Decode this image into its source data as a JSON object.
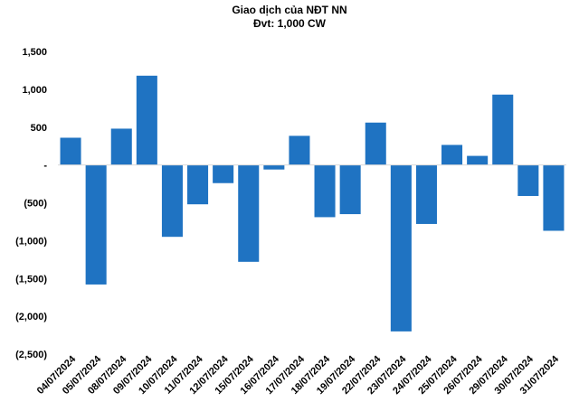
{
  "chart_data": {
    "type": "bar",
    "title": "Giao dịch của NĐT NN",
    "subtitle": "Đvt: 1,000 CW",
    "categories": [
      "04/07/2024",
      "05/07/2024",
      "08/07/2024",
      "09/07/2024",
      "10/07/2024",
      "11/07/2024",
      "12/07/2024",
      "15/07/2024",
      "16/07/2024",
      "17/07/2024",
      "18/07/2024",
      "19/07/2024",
      "22/07/2024",
      "23/07/2024",
      "24/07/2024",
      "25/07/2024",
      "26/07/2024",
      "29/07/2024",
      "30/07/2024",
      "31/07/2024"
    ],
    "values": [
      360,
      -1580,
      480,
      1180,
      -950,
      -520,
      -240,
      -1280,
      -60,
      385,
      -690,
      -650,
      560,
      -2200,
      -780,
      265,
      120,
      930,
      -410,
      -870
    ],
    "ylim": [
      -2500,
      1500
    ],
    "yticks": [
      1500,
      1000,
      500,
      0,
      -500,
      -1000,
      -1500,
      -2000,
      -2500
    ],
    "ytick_labels": [
      "1,500",
      "1,000",
      "500",
      "-",
      "(500)",
      "(1,000)",
      "(1,500)",
      "(2,000)",
      "(2,500)"
    ],
    "bar_color": "#1f73c2",
    "grid": false,
    "legend": "none"
  }
}
